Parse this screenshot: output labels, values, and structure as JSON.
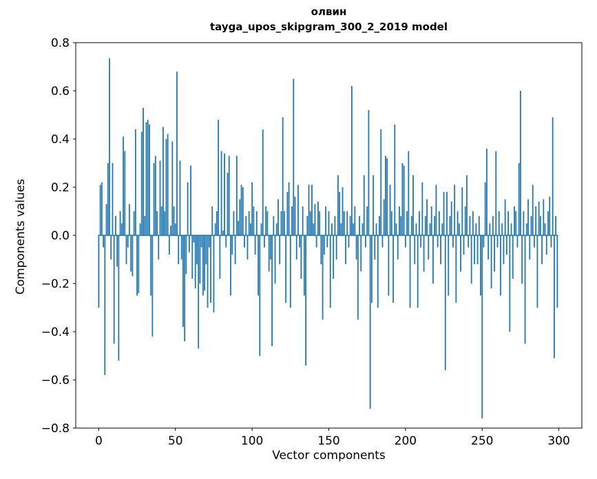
{
  "chart_data": {
    "type": "bar",
    "title_lines": [
      "олвин",
      "tayga_upos_skipgram_300_2_2019 model"
    ],
    "xlabel": "Vector components",
    "ylabel": "Components values",
    "xlim": [
      -15,
      315
    ],
    "ylim": [
      -0.8,
      0.8
    ],
    "xticks": [
      0,
      50,
      100,
      150,
      200,
      250,
      300
    ],
    "yticks": [
      -0.8,
      -0.6,
      -0.4,
      -0.2,
      0.0,
      0.2,
      0.4,
      0.6,
      0.8
    ],
    "grid": false,
    "legend": "none",
    "bar_color": "#1f77b4",
    "n_components": 300,
    "values": [
      -0.3,
      0.21,
      0.22,
      -0.05,
      -0.58,
      0.13,
      0.3,
      0.735,
      -0.1,
      0.3,
      -0.45,
      0.08,
      -0.13,
      -0.52,
      0.1,
      0.05,
      0.41,
      0.35,
      -0.12,
      -0.05,
      0.13,
      -0.15,
      -0.17,
      0.1,
      0.44,
      -0.25,
      -0.24,
      0.05,
      0.43,
      0.53,
      0.08,
      0.47,
      0.48,
      0.46,
      -0.25,
      -0.42,
      0.3,
      0.33,
      0.1,
      -0.1,
      0.31,
      0.12,
      0.45,
      0.1,
      0.4,
      0.42,
      -0.08,
      0.04,
      0.39,
      0.12,
      0.05,
      0.68,
      -0.12,
      0.31,
      -0.1,
      -0.38,
      -0.44,
      -0.16,
      0.22,
      -0.07,
      0.29,
      -0.18,
      -0.03,
      -0.22,
      -0.12,
      -0.47,
      -0.2,
      -0.05,
      -0.25,
      -0.23,
      -0.12,
      -0.3,
      -0.05,
      -0.28,
      0.12,
      -0.32,
      0.05,
      0.1,
      0.48,
      -0.18,
      0.35,
      0.02,
      0.34,
      -0.05,
      0.26,
      0.33,
      -0.25,
      -0.08,
      0.1,
      -0.12,
      0.33,
      0.06,
      0.15,
      0.21,
      0.2,
      -0.05,
      0.08,
      -0.1,
      0.1,
      0.05,
      0.22,
      0.12,
      -0.08,
      0.1,
      -0.25,
      -0.5,
      0.05,
      0.44,
      -0.05,
      0.12,
      0.1,
      -0.15,
      -0.1,
      -0.46,
      0.08,
      -0.2,
      0.05,
      0.15,
      -0.12,
      0.1,
      0.49,
      0.1,
      -0.28,
      0.18,
      0.22,
      -0.3,
      0.12,
      0.65,
      0.16,
      -0.1,
      0.21,
      -0.05,
      -0.18,
      0.12,
      -0.25,
      -0.54,
      0.08,
      0.21,
      0.1,
      0.21,
      0.05,
      0.13,
      -0.05,
      0.14,
      0.1,
      -0.12,
      -0.35,
      -0.08,
      0.12,
      -0.05,
      0.1,
      -0.3,
      0.05,
      -0.18,
      0.08,
      -0.1,
      0.25,
      0.18,
      0.05,
      0.2,
      0.1,
      -0.12,
      0.1,
      -0.05,
      0.08,
      0.62,
      0.05,
      0.12,
      -0.1,
      -0.35,
      0.08,
      -0.15,
      0.05,
      0.25,
      -0.05,
      0.12,
      0.52,
      -0.72,
      -0.28,
      0.25,
      -0.1,
      0.05,
      -0.3,
      0.08,
      0.44,
      -0.05,
      0.15,
      0.33,
      0.32,
      -0.25,
      0.21,
      0.1,
      -0.28,
      0.46,
      0.05,
      -0.1,
      0.12,
      0.08,
      0.3,
      0.29,
      -0.05,
      0.1,
      0.35,
      -0.3,
      0.08,
      0.25,
      -0.12,
      0.05,
      -0.3,
      0.1,
      -0.05,
      0.22,
      -0.15,
      0.08,
      0.15,
      -0.1,
      0.05,
      0.12,
      -0.2,
      0.08,
      0.21,
      -0.05,
      0.1,
      -0.12,
      0.05,
      0.18,
      -0.56,
      0.18,
      -0.25,
      0.08,
      0.14,
      -0.05,
      0.21,
      -0.28,
      0.1,
      0.05,
      -0.15,
      0.2,
      -0.08,
      0.12,
      0.25,
      -0.05,
      0.08,
      -0.2,
      0.1,
      -0.12,
      0.05,
      -0.12,
      0.08,
      -0.25,
      -0.76,
      -0.05,
      0.22,
      0.36,
      -0.1,
      0.05,
      -0.22,
      0.08,
      -0.15,
      0.35,
      -0.05,
      0.1,
      -0.25,
      0.05,
      -0.12,
      0.15,
      -0.08,
      0.1,
      -0.4,
      0.05,
      -0.18,
      0.12,
      0.1,
      -0.05,
      0.3,
      0.6,
      -0.2,
      0.1,
      -0.45,
      0.05,
      0.15,
      -0.1,
      0.08,
      0.21,
      -0.05,
      0.12,
      -0.3,
      0.14,
      0.08,
      -0.12,
      0.15,
      0.05,
      -0.08,
      0.1,
      0.16,
      -0.05,
      0.49,
      -0.51,
      0.08,
      -0.3
    ]
  }
}
